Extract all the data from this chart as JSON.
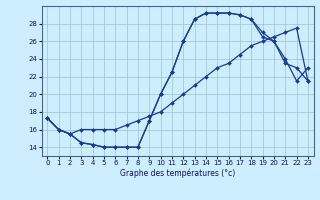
{
  "xlabel": "Graphe des températures (°c)",
  "bg_color": "#cceeff",
  "line_color": "#1a3a9a",
  "marker": "D",
  "marker_size": 2,
  "xlim": [
    -0.5,
    23.5
  ],
  "ylim": [
    13.0,
    30.0
  ],
  "yticks": [
    14,
    16,
    18,
    20,
    22,
    24,
    26,
    28
  ],
  "xticks": [
    0,
    1,
    2,
    3,
    4,
    5,
    6,
    7,
    8,
    9,
    10,
    11,
    12,
    13,
    14,
    15,
    16,
    17,
    18,
    19,
    20,
    21,
    22,
    23
  ],
  "line1_x": [
    0,
    1,
    2,
    3,
    4,
    5,
    6,
    7,
    8,
    9,
    10,
    11,
    12,
    13,
    14,
    15,
    16,
    17,
    18,
    19,
    20,
    21,
    22,
    23
  ],
  "line1_y": [
    17.3,
    16.0,
    15.5,
    14.5,
    14.3,
    14.0,
    14.0,
    14.0,
    14.0,
    17.0,
    20.0,
    22.5,
    26.0,
    28.5,
    29.2,
    29.2,
    29.2,
    29.0,
    28.5,
    27.0,
    26.0,
    24.0,
    21.5,
    23.0
  ],
  "line2_x": [
    0,
    1,
    2,
    3,
    4,
    5,
    6,
    7,
    8,
    9,
    10,
    11,
    12,
    13,
    14,
    15,
    16,
    17,
    18,
    19,
    20,
    21,
    22,
    23
  ],
  "line2_y": [
    17.3,
    16.0,
    15.5,
    16.0,
    16.0,
    16.0,
    16.0,
    16.5,
    17.0,
    17.5,
    18.0,
    19.0,
    20.0,
    21.0,
    22.0,
    23.0,
    23.5,
    24.5,
    25.5,
    26.0,
    26.5,
    27.0,
    27.5,
    21.5
  ],
  "line3_x": [
    0,
    1,
    2,
    3,
    4,
    5,
    6,
    7,
    8,
    9,
    10,
    11,
    12,
    13,
    14,
    15,
    16,
    17,
    18,
    19,
    20,
    21,
    22,
    23
  ],
  "line3_y": [
    17.3,
    16.0,
    15.5,
    14.5,
    14.3,
    14.0,
    14.0,
    14.0,
    14.0,
    17.0,
    20.0,
    22.5,
    26.0,
    28.5,
    29.2,
    29.2,
    29.2,
    29.0,
    28.5,
    26.5,
    26.0,
    23.5,
    23.0,
    21.5
  ]
}
